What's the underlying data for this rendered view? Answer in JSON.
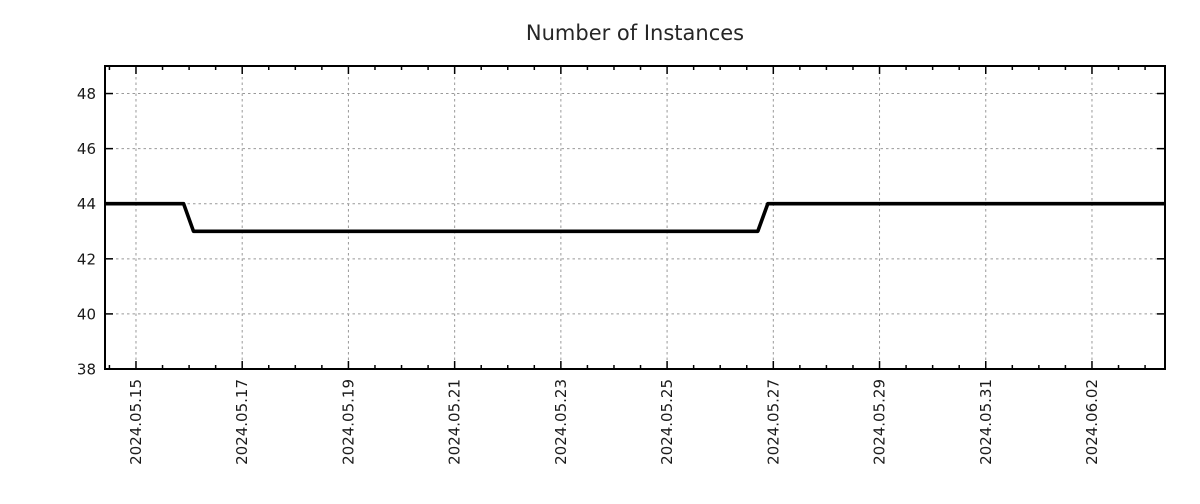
{
  "chart_data": {
    "type": "line",
    "title": "Number of Instances",
    "legend": "none",
    "grid": "dashed",
    "xlim": [
      "2024-05-14 10:00",
      "2024-06-03 09:00"
    ],
    "ylim": [
      38,
      49
    ],
    "y_ticks": [
      38,
      40,
      42,
      44,
      46,
      48
    ],
    "x_ticks": [
      {
        "date": "2024-05-15",
        "label": "2024.05.15"
      },
      {
        "date": "2024-05-17",
        "label": "2024.05.17"
      },
      {
        "date": "2024-05-19",
        "label": "2024.05.19"
      },
      {
        "date": "2024-05-21",
        "label": "2024.05.21"
      },
      {
        "date": "2024-05-23",
        "label": "2024.05.23"
      },
      {
        "date": "2024-05-25",
        "label": "2024.05.25"
      },
      {
        "date": "2024-05-27",
        "label": "2024.05.27"
      },
      {
        "date": "2024-05-29",
        "label": "2024.05.29"
      },
      {
        "date": "2024-05-31",
        "label": "2024.05.31"
      },
      {
        "date": "2024-06-02",
        "label": "2024.06.02"
      }
    ],
    "x_minor_interval_days": 0.5,
    "series": [
      {
        "name": "instances",
        "color": "#000000",
        "points": [
          [
            "2024-05-14 10:00",
            44
          ],
          [
            "2024-05-15 21:30",
            44
          ],
          [
            "2024-05-16 02:00",
            43
          ],
          [
            "2024-05-26 17:00",
            43
          ],
          [
            "2024-05-26 21:30",
            44
          ],
          [
            "2024-06-03 09:00",
            44
          ]
        ]
      }
    ],
    "colors": {
      "line": "#000000",
      "grid": "#999999",
      "frame": "#000000",
      "text": "#1a1a1a"
    }
  }
}
